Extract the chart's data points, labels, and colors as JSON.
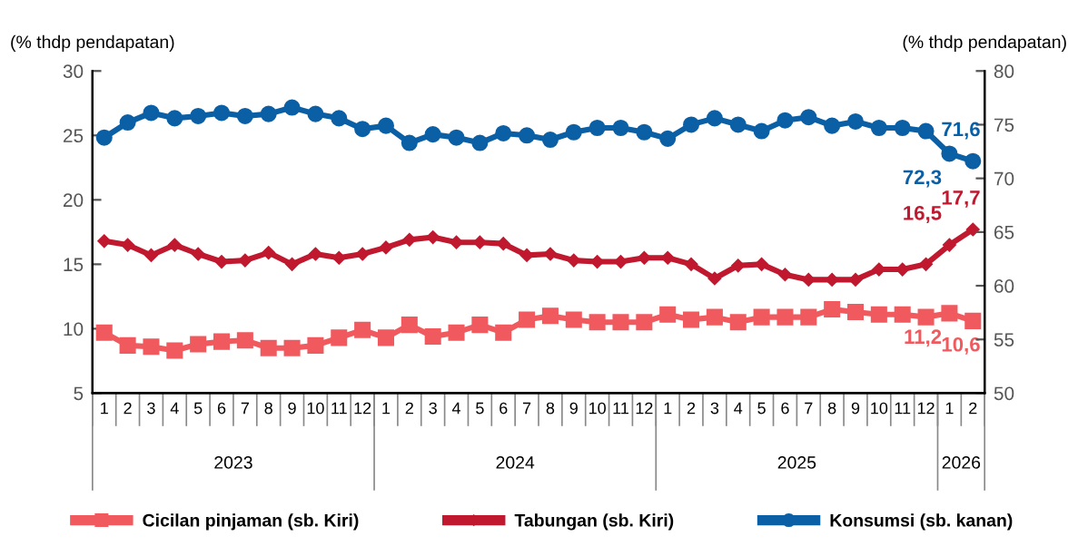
{
  "chart_data": {
    "type": "line",
    "ylabel": "(% thdp pendapatan)",
    "y2label": "(% thdp pendapatan)",
    "categories": [
      "1",
      "2",
      "3",
      "4",
      "5",
      "6",
      "7",
      "8",
      "9",
      "10",
      "11",
      "12",
      "1",
      "2",
      "3",
      "4",
      "5",
      "6",
      "7",
      "8",
      "9",
      "10",
      "11",
      "12",
      "1",
      "2",
      "3",
      "4",
      "5",
      "6",
      "7",
      "8",
      "9",
      "10",
      "11",
      "12",
      "1",
      "2"
    ],
    "annotations": [
      "2023",
      "2024",
      "2025",
      "2026"
    ],
    "ylim": [
      5,
      30
    ],
    "yticks": [
      5,
      10,
      15,
      20,
      25,
      30
    ],
    "y2lim": [
      50,
      80
    ],
    "y2ticks": [
      50,
      55,
      60,
      65,
      70,
      75,
      80
    ],
    "grid": false,
    "legend": "bottom",
    "series": [
      {
        "name": "Cicilan pinjaman (sb. Kiri)",
        "color": "#f05a5f",
        "marker": "square",
        "values": [
          9.7,
          8.7,
          8.6,
          8.3,
          8.8,
          9.0,
          9.1,
          8.5,
          8.5,
          8.7,
          9.3,
          9.9,
          9.3,
          10.3,
          9.4,
          9.7,
          10.3,
          9.7,
          10.7,
          11.0,
          10.7,
          10.5,
          10.5,
          10.5,
          11.1,
          10.7,
          10.9,
          10.5,
          10.9,
          10.9,
          10.9,
          11.5,
          11.3,
          11.1,
          11.1,
          10.9,
          11.2,
          10.6
        ],
        "value_labels": [
          null,
          null,
          null,
          null,
          null,
          null,
          null,
          null,
          null,
          null,
          null,
          null,
          null,
          null,
          null,
          null,
          null,
          null,
          null,
          null,
          null,
          null,
          null,
          null,
          null,
          null,
          null,
          null,
          null,
          null,
          null,
          null,
          null,
          null,
          null,
          null,
          "11,2",
          "10,6"
        ]
      },
      {
        "name": "Tabungan (sb. Kiri)",
        "color": "#c0182e",
        "marker": "diamond",
        "values": [
          16.8,
          16.5,
          15.7,
          16.5,
          15.8,
          15.2,
          15.3,
          15.9,
          15.0,
          15.8,
          15.5,
          15.8,
          16.3,
          16.9,
          17.1,
          16.7,
          16.7,
          16.6,
          15.7,
          15.8,
          15.3,
          15.2,
          15.2,
          15.5,
          15.5,
          15.0,
          13.9,
          14.9,
          15.0,
          14.2,
          13.8,
          13.8,
          13.8,
          14.6,
          14.6,
          15.0,
          16.5,
          17.7
        ],
        "value_labels": [
          null,
          null,
          null,
          null,
          null,
          null,
          null,
          null,
          null,
          null,
          null,
          null,
          null,
          null,
          null,
          null,
          null,
          null,
          null,
          null,
          null,
          null,
          null,
          null,
          null,
          null,
          null,
          null,
          null,
          null,
          null,
          null,
          null,
          null,
          null,
          null,
          "16,5",
          "17,7"
        ]
      },
      {
        "name": "Konsumsi (sb. kanan)",
        "color": "#0b5fa5",
        "marker": "circle",
        "axis": "y2",
        "values": [
          73.8,
          75.2,
          76.1,
          75.6,
          75.8,
          76.1,
          75.8,
          76.0,
          76.6,
          76.0,
          75.6,
          74.6,
          74.9,
          73.3,
          74.1,
          73.8,
          73.3,
          74.2,
          74.0,
          73.6,
          74.3,
          74.7,
          74.7,
          74.3,
          73.7,
          75.0,
          75.6,
          75.0,
          74.4,
          75.4,
          75.7,
          74.9,
          75.3,
          74.7,
          74.7,
          74.4,
          72.3,
          71.6
        ],
        "value_labels": [
          null,
          null,
          null,
          null,
          null,
          null,
          null,
          null,
          null,
          null,
          null,
          null,
          null,
          null,
          null,
          null,
          null,
          null,
          null,
          null,
          null,
          null,
          null,
          null,
          null,
          null,
          null,
          null,
          null,
          null,
          null,
          null,
          null,
          null,
          null,
          null,
          "72,3",
          "71,6"
        ]
      }
    ]
  }
}
